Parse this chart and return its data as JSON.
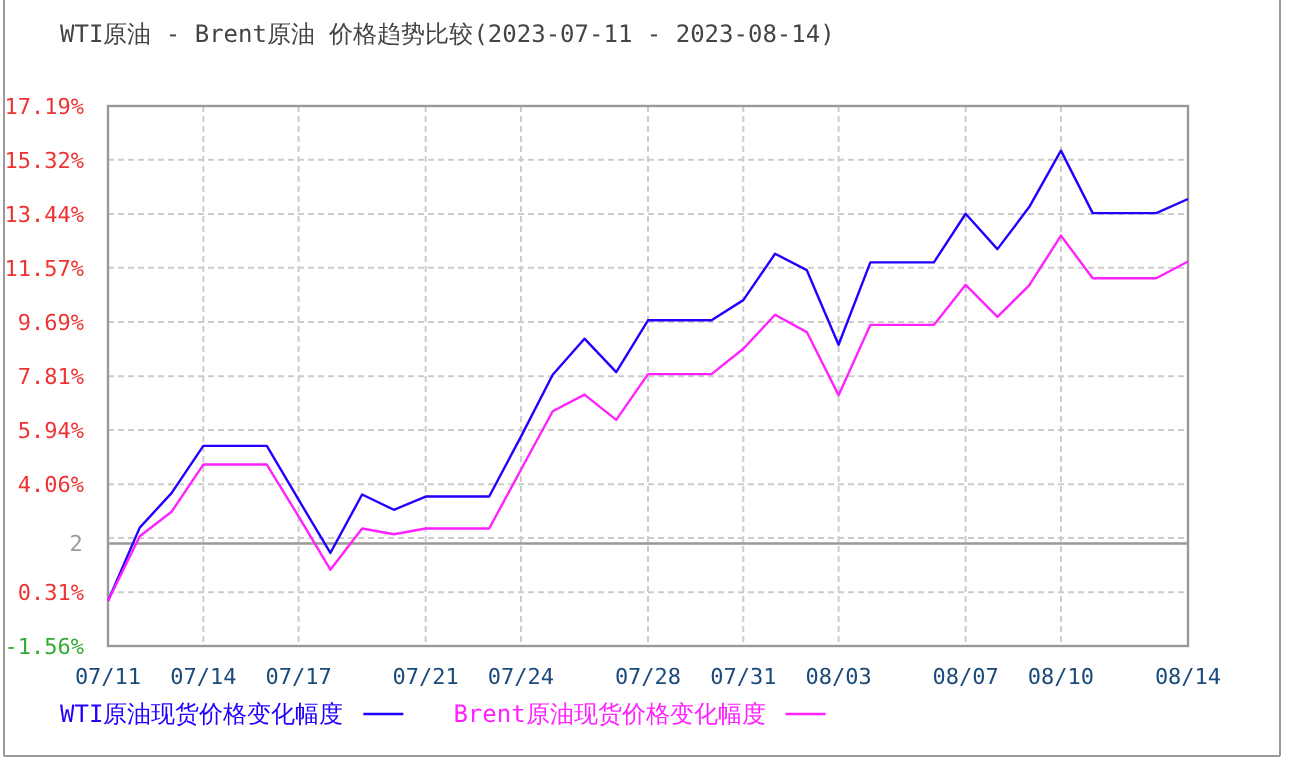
{
  "chart_data": {
    "type": "line",
    "title": "WTI原油 - Brent原油 价格趋势比较(2023-07-11 - 2023-08-14)",
    "x": [
      "2023-07-11",
      "2023-07-12",
      "2023-07-13",
      "2023-07-14",
      "2023-07-15",
      "2023-07-16",
      "2023-07-17",
      "2023-07-18",
      "2023-07-19",
      "2023-07-20",
      "2023-07-21",
      "2023-07-22",
      "2023-07-23",
      "2023-07-24",
      "2023-07-25",
      "2023-07-26",
      "2023-07-27",
      "2023-07-28",
      "2023-07-29",
      "2023-07-30",
      "2023-07-31",
      "2023-08-01",
      "2023-08-02",
      "2023-08-03",
      "2023-08-04",
      "2023-08-05",
      "2023-08-06",
      "2023-08-07",
      "2023-08-08",
      "2023-08-09",
      "2023-08-10",
      "2023-08-11",
      "2023-08-12",
      "2023-08-13",
      "2023-08-14"
    ],
    "series": [
      {
        "name": "WTI原油现货价格变化幅度",
        "color": "#2200ff",
        "values": [
          0,
          2.55,
          3.75,
          5.39,
          5.39,
          5.39,
          3.52,
          1.67,
          3.7,
          3.17,
          3.63,
          3.63,
          3.63,
          5.71,
          7.86,
          9.11,
          7.95,
          9.75,
          9.75,
          9.75,
          10.45,
          12.06,
          11.49,
          8.9,
          11.76,
          11.76,
          11.76,
          13.45,
          12.22,
          13.68,
          15.64,
          13.47,
          13.47,
          13.47,
          13.96
        ]
      },
      {
        "name": "Brent原油现货价格变化幅度",
        "color": "#ff22ff",
        "values": [
          0,
          2.25,
          3.1,
          4.74,
          4.74,
          4.74,
          2.94,
          1.09,
          2.52,
          2.32,
          2.52,
          2.52,
          2.52,
          4.56,
          6.59,
          7.17,
          6.29,
          7.88,
          7.88,
          7.88,
          8.76,
          9.94,
          9.34,
          7.15,
          9.59,
          9.59,
          9.59,
          10.98,
          9.87,
          10.96,
          12.69,
          11.21,
          11.21,
          11.21,
          11.79
        ]
      }
    ],
    "xlim": [
      "2023-07-11",
      "2023-08-14"
    ],
    "xticks": [
      {
        "value": "2023-07-11",
        "label": "07/11"
      },
      {
        "value": "2023-07-14",
        "label": "07/14"
      },
      {
        "value": "2023-07-17",
        "label": "07/17"
      },
      {
        "value": "2023-07-21",
        "label": "07/21"
      },
      {
        "value": "2023-07-24",
        "label": "07/24"
      },
      {
        "value": "2023-07-28",
        "label": "07/28"
      },
      {
        "value": "2023-07-31",
        "label": "07/31"
      },
      {
        "value": "2023-08-03",
        "label": "08/03"
      },
      {
        "value": "2023-08-07",
        "label": "08/07"
      },
      {
        "value": "2023-08-10",
        "label": "08/10"
      },
      {
        "value": "2023-08-14",
        "label": "08/14"
      }
    ],
    "ylim": [
      -1.56,
      17.19
    ],
    "yticks": [
      {
        "value": -1.56,
        "label": "-1.56%"
      },
      {
        "value": 0.31,
        "label": "0.31%"
      },
      {
        "value": 2.19,
        "label": null
      },
      {
        "value": 4.06,
        "label": "4.06%"
      },
      {
        "value": 5.94,
        "label": "5.94%"
      },
      {
        "value": 7.81,
        "label": "7.81%"
      },
      {
        "value": 9.69,
        "label": "9.69%"
      },
      {
        "value": 11.57,
        "label": "11.57%"
      },
      {
        "value": 13.44,
        "label": "13.44%"
      },
      {
        "value": 15.32,
        "label": "15.32%"
      },
      {
        "value": 17.19,
        "label": "17.19%"
      }
    ],
    "ref_lines": [
      {
        "axis": "y",
        "value": 2,
        "label": "2",
        "color": "#999999"
      }
    ],
    "grid": true,
    "legend": "bottom",
    "line_style": "solid",
    "marker": "none"
  }
}
